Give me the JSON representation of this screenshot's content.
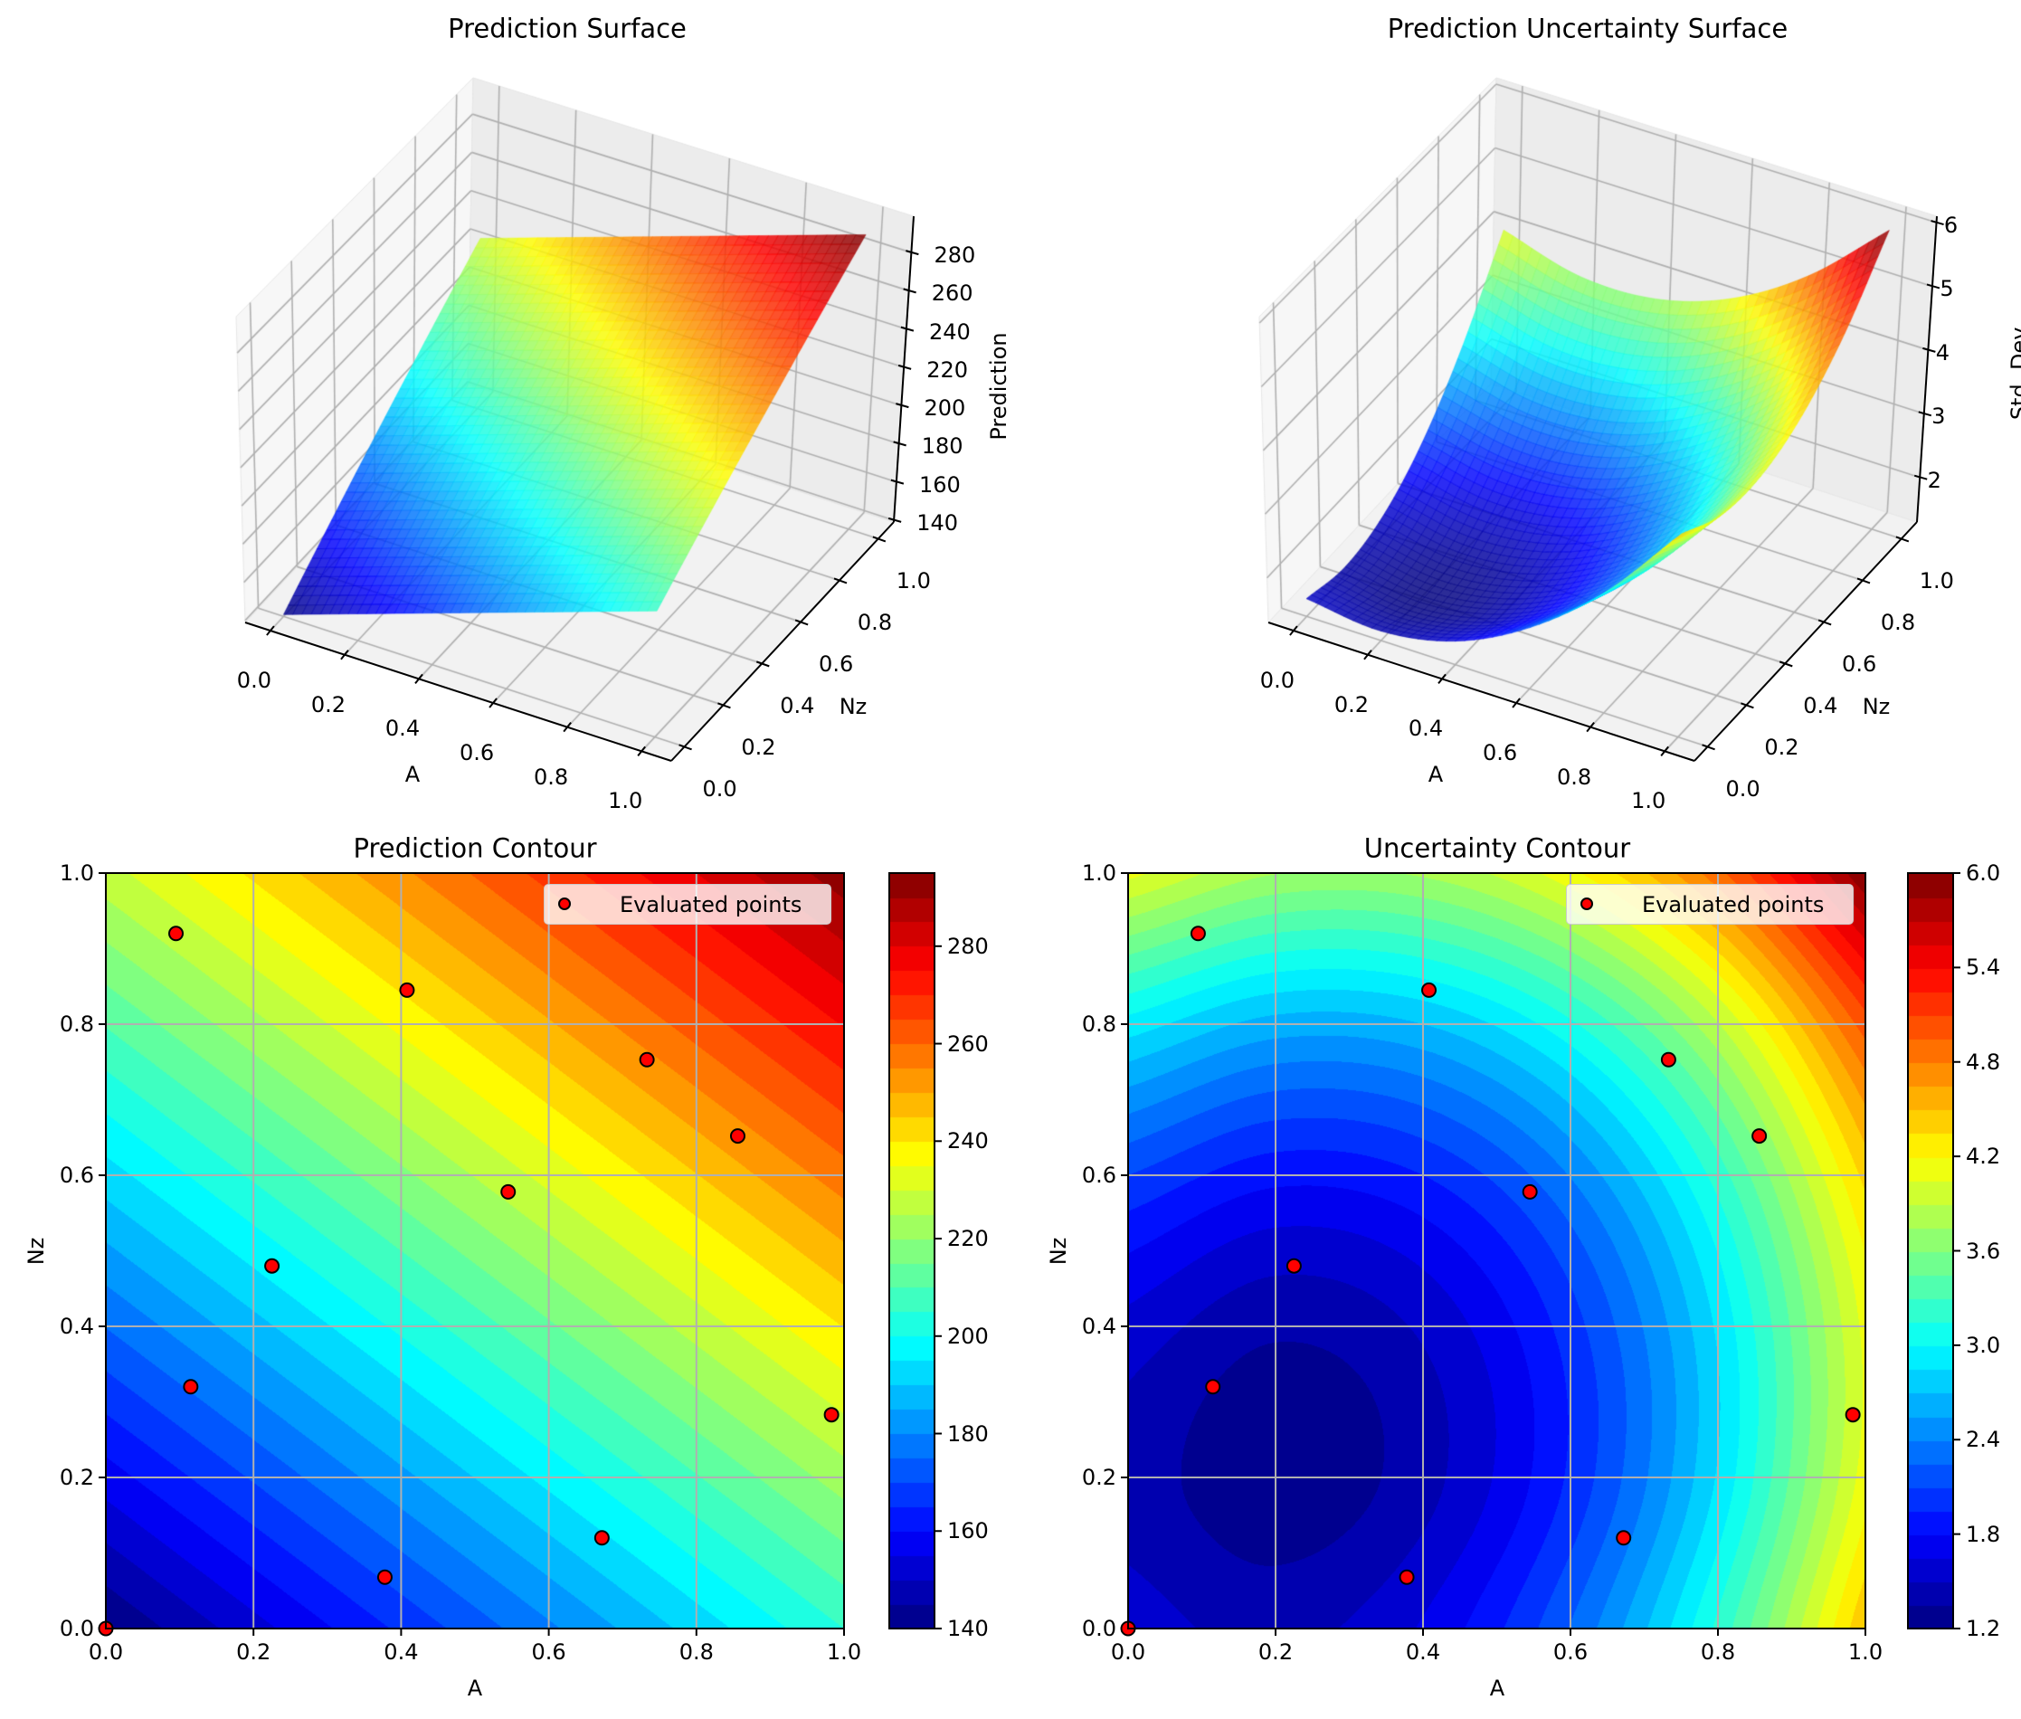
{
  "colors": {
    "points": "#ff0000",
    "point_edge": "#000000",
    "grid": "#b0b0b0"
  },
  "chart_data": [
    {
      "type": "surface3d",
      "title": "Prediction Surface",
      "xlabel": "A",
      "ylabel": "Nz",
      "zlabel": "Prediction",
      "colormap": "jet",
      "x_ticks": [
        "0.0",
        "0.2",
        "0.4",
        "0.6",
        "0.8",
        "1.0"
      ],
      "y_ticks": [
        "0.0",
        "0.2",
        "0.4",
        "0.6",
        "0.8",
        "1.0"
      ],
      "z_ticks": [
        "140",
        "160",
        "180",
        "200",
        "220",
        "240",
        "260",
        "280"
      ],
      "zlim": [
        139,
        299
      ],
      "grid": {
        "x": [
          0,
          0.2,
          0.4,
          0.6,
          0.8,
          1.0
        ],
        "y": [
          0,
          0.2,
          0.4,
          0.6,
          0.8,
          1.0
        ],
        "z": [
          [
            140,
            153,
            166,
            179,
            192,
            205
          ],
          [
            157.6,
            170.6,
            183.6,
            196.6,
            209.6,
            222.6
          ],
          [
            175.2,
            188.2,
            201.2,
            214.2,
            227.2,
            240.2
          ],
          [
            192.8,
            205.8,
            218.8,
            231.8,
            244.8,
            257.8
          ],
          [
            210.4,
            223.4,
            236.4,
            249.4,
            262.4,
            275.4
          ],
          [
            228,
            241,
            254,
            267,
            280,
            293
          ]
        ]
      }
    },
    {
      "type": "surface3d",
      "title": "Prediction Uncertainty Surface",
      "xlabel": "A",
      "ylabel": "Nz",
      "zlabel": "Std. Dev.",
      "colormap": "jet",
      "x_ticks": [
        "0.0",
        "0.2",
        "0.4",
        "0.6",
        "0.8",
        "1.0"
      ],
      "y_ticks": [
        "0.0",
        "0.2",
        "0.4",
        "0.6",
        "0.8",
        "1.0"
      ],
      "z_ticks": [
        "2",
        "3",
        "4",
        "5",
        "6"
      ],
      "zlim": [
        1.3,
        6.1
      ],
      "grid": {
        "x": [
          0,
          0.2,
          0.4,
          0.6,
          0.8,
          1.0
        ],
        "y": [
          0,
          0.2,
          0.4,
          0.6,
          0.8,
          1.0
        ],
        "z": [
          [
            1.58,
            1.45,
            1.67,
            2.26,
            3.19,
            4.49
          ],
          [
            1.43,
            1.25,
            1.44,
            1.98,
            2.87,
            4.13
          ],
          [
            1.6,
            1.38,
            1.53,
            2.03,
            2.88,
            4.1
          ],
          [
            2.1,
            1.85,
            1.95,
            2.41,
            3.22,
            4.4
          ],
          [
            2.94,
            2.64,
            2.7,
            3.12,
            3.89,
            5.03
          ],
          [
            4.1,
            3.76,
            3.78,
            4.16,
            4.9,
            5.99
          ]
        ]
      }
    },
    {
      "type": "contourf",
      "title": "Prediction Contour",
      "xlabel": "A",
      "ylabel": "Nz",
      "xlim": [
        0,
        1
      ],
      "ylim": [
        0,
        1
      ],
      "x_ticks": [
        "0.0",
        "0.2",
        "0.4",
        "0.6",
        "0.8",
        "1.0"
      ],
      "y_ticks": [
        "0.0",
        "0.2",
        "0.4",
        "0.6",
        "0.8",
        "1.0"
      ],
      "grid_lines": true,
      "colormap": "jet",
      "levels": {
        "min": 140,
        "max": 295,
        "step": 5
      },
      "colorbar_ticks": [
        "140",
        "160",
        "180",
        "200",
        "220",
        "240",
        "260",
        "280"
      ],
      "legend": {
        "label": "Evaluated points",
        "placement": "upper right"
      },
      "points": {
        "x": [
          0.0,
          0.095,
          0.408,
          0.733,
          0.856,
          0.545,
          0.225,
          0.115,
          0.378,
          0.672,
          0.983
        ],
        "y": [
          0.0,
          0.92,
          0.845,
          0.753,
          0.652,
          0.578,
          0.48,
          0.32,
          0.068,
          0.12,
          0.283
        ]
      },
      "grid": {
        "x": [
          0,
          0.2,
          0.4,
          0.6,
          0.8,
          1.0
        ],
        "y": [
          0,
          0.2,
          0.4,
          0.6,
          0.8,
          1.0
        ],
        "z": [
          [
            140,
            153,
            166,
            179,
            192,
            205
          ],
          [
            157.6,
            170.6,
            183.6,
            196.6,
            209.6,
            222.6
          ],
          [
            175.2,
            188.2,
            201.2,
            214.2,
            227.2,
            240.2
          ],
          [
            192.8,
            205.8,
            218.8,
            231.8,
            244.8,
            257.8
          ],
          [
            210.4,
            223.4,
            236.4,
            249.4,
            262.4,
            275.4
          ],
          [
            228,
            241,
            254,
            267,
            280,
            293
          ]
        ]
      }
    },
    {
      "type": "contourf",
      "title": "Uncertainty Contour",
      "xlabel": "A",
      "ylabel": "Nz",
      "xlim": [
        0,
        1
      ],
      "ylim": [
        0,
        1
      ],
      "x_ticks": [
        "0.0",
        "0.2",
        "0.4",
        "0.6",
        "0.8",
        "1.0"
      ],
      "y_ticks": [
        "0.0",
        "0.2",
        "0.4",
        "0.6",
        "0.8",
        "1.0"
      ],
      "grid_lines": true,
      "colormap": "jet",
      "levels": {
        "min": 1.2,
        "max": 6.0,
        "step": 0.15
      },
      "colorbar_ticks": [
        "1.2",
        "1.8",
        "2.4",
        "3.0",
        "3.6",
        "4.2",
        "4.8",
        "5.4",
        "6.0"
      ],
      "legend": {
        "label": "Evaluated points",
        "placement": "upper right"
      },
      "points": {
        "x": [
          0.0,
          0.095,
          0.408,
          0.733,
          0.856,
          0.545,
          0.225,
          0.115,
          0.378,
          0.672,
          0.983
        ],
        "y": [
          0.0,
          0.92,
          0.845,
          0.753,
          0.652,
          0.578,
          0.48,
          0.32,
          0.068,
          0.12,
          0.283
        ]
      },
      "grid": {
        "x": [
          0,
          0.2,
          0.4,
          0.6,
          0.8,
          1.0
        ],
        "y": [
          0,
          0.2,
          0.4,
          0.6,
          0.8,
          1.0
        ],
        "z": [
          [
            1.58,
            1.45,
            1.67,
            2.26,
            3.19,
            4.49
          ],
          [
            1.43,
            1.25,
            1.44,
            1.98,
            2.87,
            4.13
          ],
          [
            1.6,
            1.38,
            1.53,
            2.03,
            2.88,
            4.1
          ],
          [
            2.1,
            1.85,
            1.95,
            2.41,
            3.22,
            4.4
          ],
          [
            2.94,
            2.64,
            2.7,
            3.12,
            3.89,
            5.03
          ],
          [
            4.1,
            3.76,
            3.78,
            4.16,
            4.9,
            5.99
          ]
        ]
      }
    }
  ]
}
